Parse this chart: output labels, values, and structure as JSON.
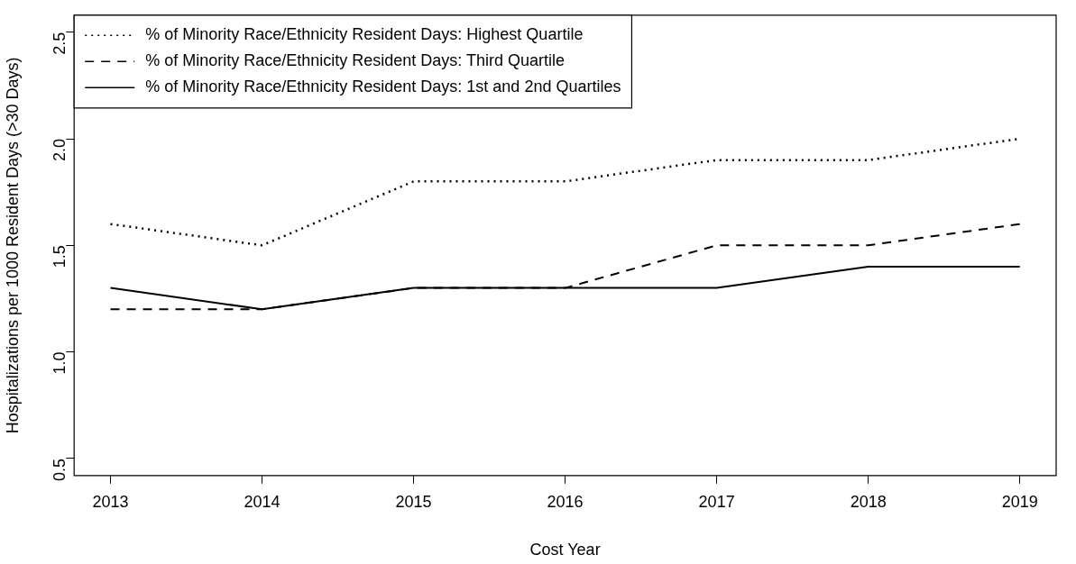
{
  "chart_data": {
    "type": "line",
    "xlabel": "Cost Year",
    "ylabel": "Hospitalizations per 1000 Resident Days (>30 Days)",
    "x": [
      2013,
      2014,
      2015,
      2016,
      2017,
      2018,
      2019
    ],
    "xlim": [
      2012.76,
      2019.24
    ],
    "xticks": [
      2013,
      2014,
      2015,
      2016,
      2017,
      2018,
      2019
    ],
    "ylim": [
      0.42,
      2.58
    ],
    "yticks": [
      0.5,
      {
        "value": 1,
        "label": "1.0"
      },
      1.5,
      {
        "value": 2,
        "label": "2.0"
      },
      2.5
    ],
    "grid": false,
    "legend": "top left",
    "marker": "none",
    "series": [
      {
        "name": "% of Minority Race/Ethnicity Resident Days: Highest Quartile",
        "color": "#000000",
        "line_style": "dotted",
        "values": [
          1.6,
          1.5,
          1.8,
          1.8,
          1.9,
          1.9,
          2.0
        ]
      },
      {
        "name": "% of Minority Race/Ethnicity Resident Days: Third Quartile",
        "color": "#000000",
        "line_style": "dashed",
        "values": [
          1.2,
          1.2,
          1.3,
          1.3,
          1.5,
          1.5,
          1.6
        ]
      },
      {
        "name": "% of Minority Race/Ethnicity Resident Days: 1st and 2nd Quartiles",
        "color": "#000000",
        "line_style": "solid",
        "values": [
          1.3,
          1.2,
          1.3,
          1.3,
          1.3,
          1.4,
          1.4
        ]
      }
    ]
  }
}
